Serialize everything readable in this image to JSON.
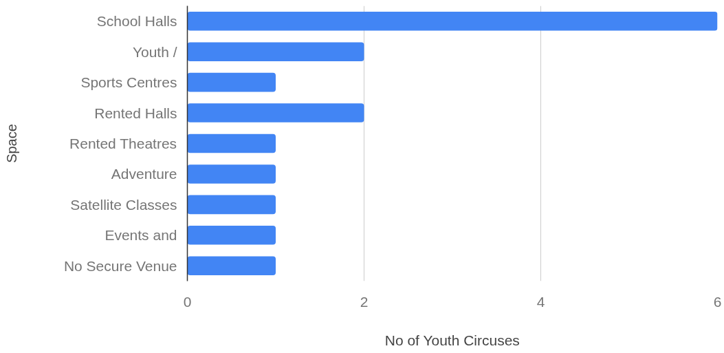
{
  "chart_data": {
    "type": "bar",
    "orientation": "horizontal",
    "xlabel": "No of Youth Circuses",
    "ylabel": "Space",
    "categories": [
      "School Halls",
      "Youth /",
      "Sports Centres",
      "Rented Halls",
      "Rented Theatres",
      "Adventure",
      "Satellite Classes",
      "Events and",
      "No Secure Venue"
    ],
    "values": [
      6,
      2,
      1,
      2,
      1,
      1,
      1,
      1,
      1
    ],
    "color": "#4285f4",
    "xlim": [
      0,
      6
    ],
    "xticks": [
      0,
      2,
      4,
      6
    ],
    "grid": "x"
  }
}
